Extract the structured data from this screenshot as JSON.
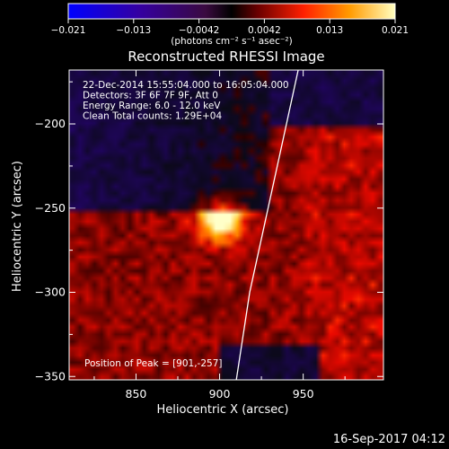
{
  "chart_data": {
    "type": "heatmap",
    "title": "Reconstructed RHESSI Image",
    "xlabel": "Heliocentric X (arcsec)",
    "ylabel": "Heliocentric Y (arcsec)",
    "xlim": [
      810,
      998
    ],
    "ylim": [
      -352,
      -168
    ],
    "x_ticks": [
      850,
      900,
      950
    ],
    "y_ticks": [
      -200,
      -250,
      -300,
      -350
    ],
    "colorbar": {
      "range": [
        -0.021,
        0.021
      ],
      "ticks": [
        "-0.021",
        "-0.013",
        "-0.0042",
        "0.0042",
        "0.013",
        "0.021"
      ],
      "unit_label": "(photons cm⁻² s⁻¹ asec⁻²)"
    },
    "annotations": [
      "22-Dec-2014 15:55:04.000 to 16:05:04.000",
      "Detectors: 3F 6F 7F 9F, Att 0",
      "Energy Range: 6.0 - 12.0 keV",
      "Clean     Total counts: 1.29E+04",
      "Position of Peak = [901,-257]"
    ],
    "peak": {
      "x": 901,
      "y": -257
    },
    "limb": [
      [
        947,
        -168
      ],
      [
        940,
        -200
      ],
      [
        929,
        -250
      ],
      [
        918,
        -300
      ],
      [
        910,
        -352
      ]
    ],
    "footer": "16-Sep-2017 04:12"
  }
}
